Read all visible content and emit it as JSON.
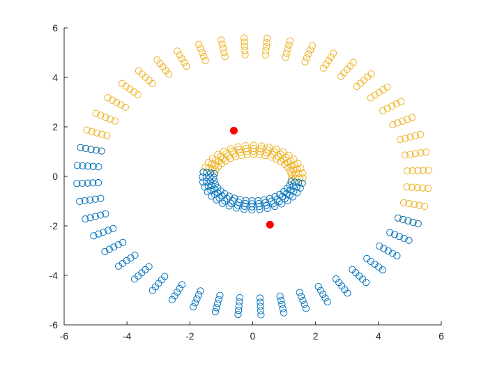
{
  "chart_data": {
    "type": "scatter",
    "title": "",
    "xlabel": "",
    "ylabel": "",
    "xlim": [
      -6,
      6
    ],
    "ylim": [
      -6,
      6
    ],
    "grid": false,
    "box": "off",
    "x_ticks": [
      -6,
      -4,
      -2,
      0,
      2,
      4,
      6
    ],
    "y_ticks": [
      -6,
      -4,
      -2,
      0,
      2,
      4,
      6
    ],
    "x_tick_labels": [
      "-6",
      "-4",
      "-2",
      "0",
      "2",
      "4",
      "6"
    ],
    "y_tick_labels": [
      "-6",
      "-4",
      "-2",
      "0",
      "2",
      "4",
      "6"
    ],
    "marker": "open-circle",
    "series": [
      {
        "color": "#EDB120",
        "description_rings": [
          {
            "x_radius": 5.6,
            "y_radius": 5.6,
            "angle_from_deg": -20,
            "angle_to_deg": 168,
            "rings": 5,
            "ring_step": 0.17,
            "points_per_ring": 48
          },
          {
            "x_radius": 1.6,
            "y_radius": 1.3,
            "angle_from_deg": -10,
            "angle_to_deg": 170,
            "rings": 4,
            "ring_step": 0.12,
            "points_per_ring": 40,
            "center_x": 0.0,
            "center_y": -0.05
          }
        ]
      },
      {
        "color": "#0072BD",
        "description_rings": [
          {
            "x_radius": 5.6,
            "y_radius": 5.6,
            "angle_from_deg": 168,
            "angle_to_deg": 340,
            "rings": 5,
            "ring_step": 0.17,
            "points_per_ring": 48
          },
          {
            "x_radius": 1.6,
            "y_radius": 1.3,
            "angle_from_deg": 170,
            "angle_to_deg": 350,
            "rings": 4,
            "ring_step": 0.12,
            "points_per_ring": 40,
            "center_x": 0.0,
            "center_y": -0.05
          }
        ]
      }
    ],
    "centroids": {
      "color": "#FF0000",
      "points": [
        {
          "x": -0.6,
          "y": 1.85
        },
        {
          "x": 0.55,
          "y": -1.95
        }
      ]
    }
  }
}
